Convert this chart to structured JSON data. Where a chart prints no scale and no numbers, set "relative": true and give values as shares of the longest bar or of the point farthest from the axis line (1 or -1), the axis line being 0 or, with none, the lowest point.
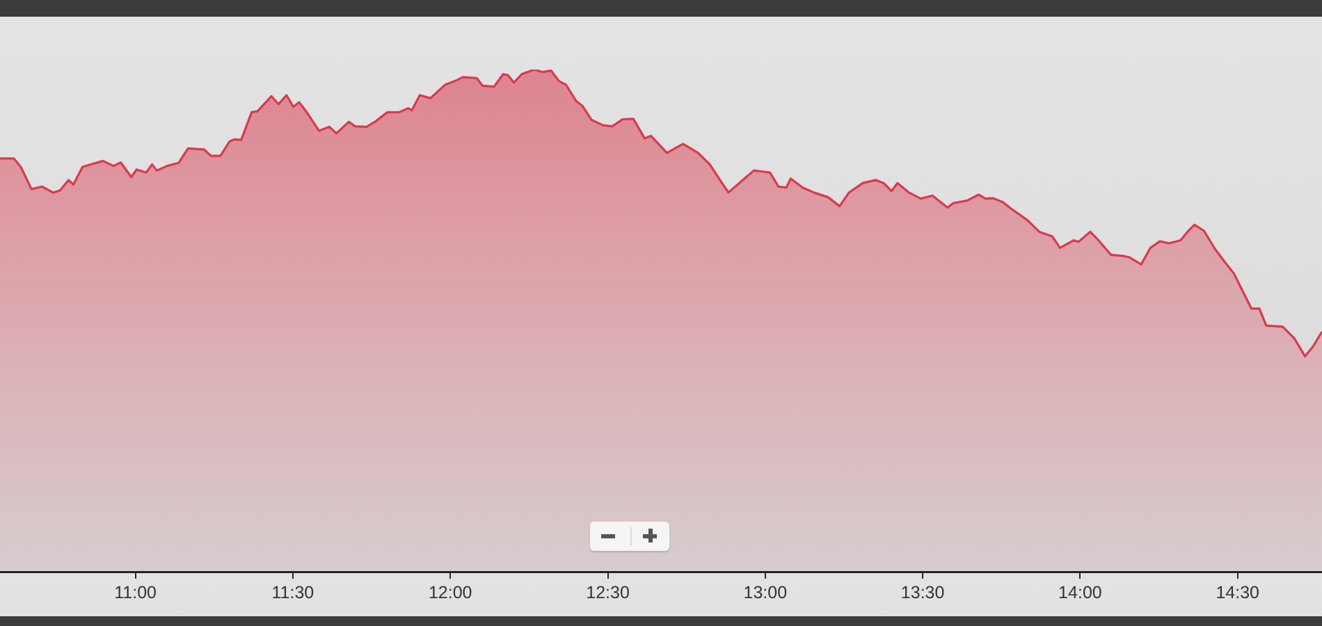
{
  "chart_data": {
    "type": "area",
    "relative": true,
    "color": "#d93a4e",
    "x": [
      10.57,
      10.614,
      10.636,
      10.67,
      10.703,
      10.739,
      10.76,
      10.788,
      10.803,
      10.832,
      10.857,
      10.897,
      10.931,
      10.953,
      10.987,
      11.004,
      11.034,
      11.053,
      11.068,
      11.1,
      11.137,
      11.167,
      11.218,
      11.24,
      11.27,
      11.299,
      11.314,
      11.336,
      11.369,
      11.388,
      11.432,
      11.454,
      11.48,
      11.501,
      11.52,
      11.542,
      11.583,
      11.616,
      11.638,
      11.678,
      11.697,
      11.734,
      11.763,
      11.8,
      11.837,
      11.866,
      11.878,
      11.903,
      11.937,
      11.984,
      12.014,
      12.04,
      12.084,
      12.102,
      12.139,
      12.168,
      12.183,
      12.202,
      12.227,
      12.267,
      12.293,
      12.32,
      12.345,
      12.367,
      12.4,
      12.419,
      12.448,
      12.485,
      12.514,
      12.547,
      12.581,
      12.617,
      12.637,
      12.688,
      12.713,
      12.739,
      12.787,
      12.824,
      12.883,
      12.934,
      12.964,
      13.015,
      13.042,
      13.067,
      13.081,
      13.119,
      13.155,
      13.199,
      13.236,
      13.266,
      13.31,
      13.351,
      13.376,
      13.401,
      13.42,
      13.457,
      13.494,
      13.531,
      13.579,
      13.597,
      13.641,
      13.678,
      13.7,
      13.722,
      13.752,
      13.781,
      13.833,
      13.87,
      13.911,
      13.936,
      13.98,
      13.995,
      14.032,
      14.054,
      14.098,
      14.135,
      14.157,
      14.194,
      14.223,
      14.253,
      14.282,
      14.319,
      14.341,
      14.363,
      14.393,
      14.429,
      14.459,
      14.488,
      14.544,
      14.569,
      14.591,
      14.643,
      14.68,
      14.714,
      14.739,
      14.768
    ],
    "values": [
      0.823,
      0.823,
      0.806,
      0.762,
      0.767,
      0.755,
      0.759,
      0.78,
      0.771,
      0.806,
      0.811,
      0.818,
      0.808,
      0.815,
      0.786,
      0.801,
      0.795,
      0.811,
      0.799,
      0.808,
      0.814,
      0.843,
      0.841,
      0.828,
      0.828,
      0.857,
      0.861,
      0.86,
      0.915,
      0.917,
      0.947,
      0.931,
      0.949,
      0.926,
      0.935,
      0.917,
      0.878,
      0.886,
      0.873,
      0.896,
      0.887,
      0.886,
      0.897,
      0.915,
      0.915,
      0.923,
      0.919,
      0.949,
      0.943,
      0.97,
      0.977,
      0.985,
      0.983,
      0.968,
      0.966,
      0.991,
      0.989,
      0.974,
      0.991,
      1.0,
      0.995,
      0.998,
      0.977,
      0.97,
      0.937,
      0.928,
      0.9,
      0.889,
      0.887,
      0.901,
      0.902,
      0.863,
      0.868,
      0.834,
      0.843,
      0.852,
      0.834,
      0.811,
      0.755,
      0.783,
      0.799,
      0.795,
      0.767,
      0.765,
      0.783,
      0.765,
      0.755,
      0.746,
      0.728,
      0.755,
      0.774,
      0.78,
      0.774,
      0.758,
      0.774,
      0.755,
      0.743,
      0.749,
      0.725,
      0.734,
      0.739,
      0.751,
      0.743,
      0.744,
      0.737,
      0.723,
      0.7,
      0.677,
      0.668,
      0.645,
      0.66,
      0.657,
      0.677,
      0.663,
      0.631,
      0.629,
      0.626,
      0.612,
      0.645,
      0.658,
      0.654,
      0.66,
      0.677,
      0.691,
      0.679,
      0.642,
      0.617,
      0.594,
      0.524,
      0.524,
      0.49,
      0.488,
      0.465,
      0.429,
      0.448,
      0.478
    ],
    "xlim": [
      10.57,
      14.768
    ],
    "xticks": [
      {
        "value": 11,
        "label": "11:00"
      },
      {
        "value": 11.5,
        "label": "11:30"
      },
      {
        "value": 12,
        "label": "12:00"
      },
      {
        "value": 12.5,
        "label": "12:30"
      },
      {
        "value": 13,
        "label": "13:00"
      },
      {
        "value": 13.5,
        "label": "13:30"
      },
      {
        "value": 14,
        "label": "14:00"
      },
      {
        "value": 14.5,
        "label": "14:30"
      }
    ]
  }
}
